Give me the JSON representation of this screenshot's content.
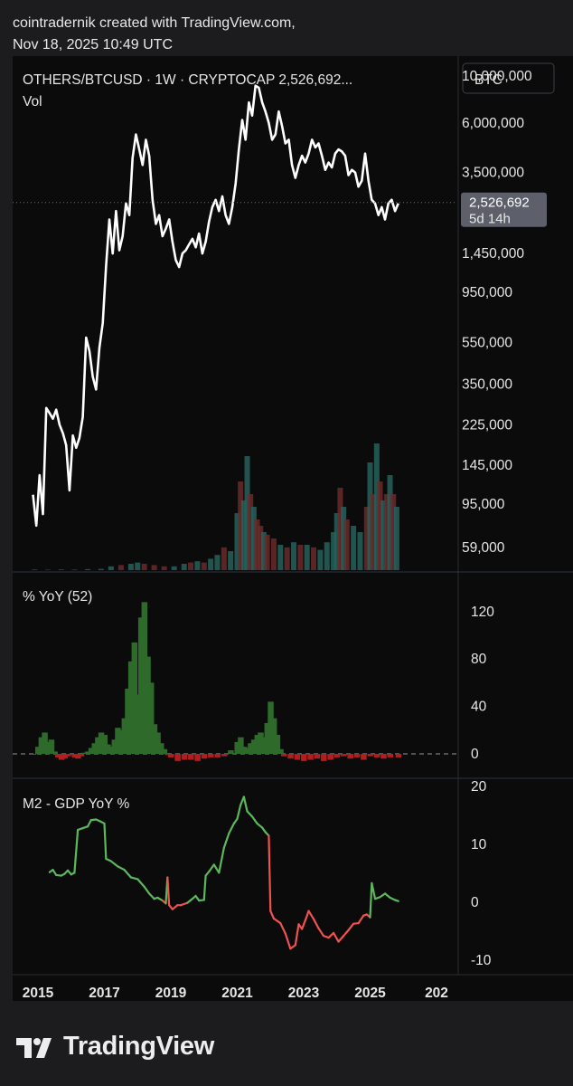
{
  "header": {
    "line1": "cointradernik created with TradingView.com,",
    "line2": "Nov 18, 2025 10:49 UTC"
  },
  "footer": {
    "brand": "TradingView"
  },
  "currency_button": "BTC",
  "colors": {
    "price_line": "#ffffff",
    "positive": "#2e6b2b",
    "negative": "#b21e1e",
    "m2_up": "#5cb85c",
    "m2_down": "#ef5350",
    "badge_bg": "#5d606b"
  },
  "chart_data": [
    {
      "type": "line",
      "title": "OTHERS/BTCUSD · 1W · CRYPTOCAP",
      "last_value_label": "2,526,692...",
      "volume_label": "Vol",
      "price_badge": {
        "value": "2,526,692",
        "countdown": "5d 14h"
      },
      "y_scale": "log",
      "ylim": [
        50000,
        10000000
      ],
      "y_ticks": [
        "10,000,000",
        "6,000,000",
        "3,500,000",
        "2,526,692",
        "1,450,000",
        "950,000",
        "550,000",
        "350,000",
        "225,000",
        "145,000",
        "95,000",
        "59,000"
      ],
      "series": [
        {
          "x": [
            2014.85,
            2014.95,
            2015.05,
            2015.15,
            2015.25,
            2015.35,
            2015.45,
            2015.55,
            2015.65,
            2015.75,
            2015.85,
            2015.95,
            2016.05,
            2016.15,
            2016.25,
            2016.35,
            2016.45,
            2016.55,
            2016.65,
            2016.75,
            2016.85,
            2016.95,
            2017.05,
            2017.15,
            2017.25,
            2017.35,
            2017.45,
            2017.55,
            2017.65,
            2017.75,
            2017.85,
            2017.95,
            2018.05,
            2018.15,
            2018.25,
            2018.35,
            2018.45,
            2018.55,
            2018.65,
            2018.75,
            2018.85,
            2018.95,
            2019.05,
            2019.15,
            2019.25,
            2019.35,
            2019.45,
            2019.55,
            2019.65,
            2019.75,
            2019.85,
            2019.95,
            2020.05,
            2020.15,
            2020.25,
            2020.35,
            2020.45,
            2020.55,
            2020.65,
            2020.75,
            2020.85,
            2020.95,
            2021.05,
            2021.15,
            2021.25,
            2021.35,
            2021.45,
            2021.55,
            2021.65,
            2021.75,
            2021.85,
            2021.95,
            2022.05,
            2022.15,
            2022.25,
            2022.35,
            2022.45,
            2022.55,
            2022.65,
            2022.75,
            2022.85,
            2022.95,
            2023.05,
            2023.15,
            2023.25,
            2023.35,
            2023.45,
            2023.55,
            2023.65,
            2023.75,
            2023.85,
            2023.95,
            2024.05,
            2024.15,
            2024.25,
            2024.35,
            2024.45,
            2024.55,
            2024.65,
            2024.75,
            2024.85,
            2024.95,
            2025.05,
            2025.15,
            2025.25,
            2025.35,
            2025.45,
            2025.55,
            2025.65,
            2025.75,
            2025.85
          ],
          "y": [
            105000,
            75000,
            130000,
            85000,
            270000,
            255000,
            240000,
            265000,
            225000,
            205000,
            180000,
            110000,
            200000,
            175000,
            195000,
            245000,
            580000,
            500000,
            380000,
            330000,
            520000,
            680000,
            1250000,
            2100000,
            1450000,
            2300000,
            1500000,
            1750000,
            2500000,
            2200000,
            4100000,
            5300000,
            4500000,
            3800000,
            5000000,
            4200000,
            2600000,
            2000000,
            2200000,
            1750000,
            1900000,
            2100000,
            1650000,
            1350000,
            1250000,
            1450000,
            1500000,
            1600000,
            1700000,
            1550000,
            1800000,
            1450000,
            1650000,
            2050000,
            2400000,
            2600000,
            2300000,
            2700000,
            2200000,
            2000000,
            2400000,
            3100000,
            4500000,
            6200000,
            5000000,
            7500000,
            6500000,
            9000000,
            8800000,
            7500000,
            6800000,
            6000000,
            5000000,
            5300000,
            6800000,
            5800000,
            4800000,
            5000000,
            3800000,
            3300000,
            3800000,
            4200000,
            3900000,
            4300000,
            5000000,
            4600000,
            4800000,
            4200000,
            3600000,
            3900000,
            3700000,
            4300000,
            4500000,
            4400000,
            4200000,
            3400000,
            3600000,
            3500000,
            3000000,
            3200000,
            4300000,
            3200000,
            2600000,
            2500000,
            2200000,
            2400000,
            2100000,
            2500000,
            2600000,
            2300000,
            2500000
          ],
          "name": ""
        }
      ],
      "volume": {
        "x": [
          2014.9,
          2015.3,
          2015.7,
          2016.1,
          2016.5,
          2016.9,
          2017.2,
          2017.5,
          2017.8,
          2018.0,
          2018.2,
          2018.5,
          2018.8,
          2019.1,
          2019.4,
          2019.6,
          2019.8,
          2020.0,
          2020.2,
          2020.4,
          2020.6,
          2020.8,
          2021.0,
          2021.1,
          2021.2,
          2021.3,
          2021.4,
          2021.5,
          2021.6,
          2021.7,
          2021.8,
          2021.9,
          2022.1,
          2022.3,
          2022.5,
          2022.7,
          2022.9,
          2023.1,
          2023.3,
          2023.5,
          2023.7,
          2023.9,
          2024.0,
          2024.1,
          2024.2,
          2024.3,
          2024.5,
          2024.7,
          2024.9,
          2025.0,
          2025.1,
          2025.2,
          2025.3,
          2025.4,
          2025.5,
          2025.6,
          2025.7,
          2025.8
        ],
        "values": [
          0.005,
          0.005,
          0.005,
          0.006,
          0.008,
          0.01,
          0.03,
          0.04,
          0.05,
          0.06,
          0.05,
          0.04,
          0.03,
          0.03,
          0.05,
          0.06,
          0.07,
          0.06,
          0.09,
          0.12,
          0.18,
          0.15,
          0.45,
          0.7,
          0.55,
          0.9,
          0.6,
          0.5,
          0.4,
          0.35,
          0.3,
          0.28,
          0.25,
          0.2,
          0.18,
          0.22,
          0.2,
          0.2,
          0.18,
          0.16,
          0.22,
          0.3,
          0.45,
          0.65,
          0.5,
          0.4,
          0.35,
          0.3,
          0.5,
          0.85,
          0.6,
          1.0,
          0.7,
          0.55,
          0.6,
          0.75,
          0.6,
          0.5
        ],
        "direction": [
          1,
          0,
          1,
          0,
          1,
          1,
          1,
          0,
          1,
          1,
          0,
          0,
          0,
          1,
          1,
          0,
          1,
          0,
          1,
          1,
          0,
          1,
          1,
          0,
          1,
          1,
          0,
          1,
          0,
          0,
          1,
          0,
          0,
          1,
          0,
          1,
          0,
          1,
          0,
          1,
          1,
          1,
          1,
          0,
          1,
          0,
          1,
          1,
          0,
          1,
          0,
          1,
          0,
          1,
          0,
          1,
          0,
          1
        ]
      },
      "x_ticks": [
        "2015",
        "2017",
        "2019",
        "2021",
        "2023",
        "2025",
        "202"
      ]
    },
    {
      "type": "area",
      "title": "% YoY (52)",
      "ylim": [
        -10,
        140
      ],
      "y_ticks": [
        "120",
        "80",
        "40",
        "0"
      ],
      "x": [
        2014.85,
        2015.0,
        2015.1,
        2015.2,
        2015.3,
        2015.4,
        2015.5,
        2015.6,
        2015.7,
        2015.8,
        2015.9,
        2016.0,
        2016.1,
        2016.2,
        2016.3,
        2016.4,
        2016.5,
        2016.6,
        2016.7,
        2016.8,
        2016.9,
        2017.0,
        2017.1,
        2017.2,
        2017.3,
        2017.4,
        2017.5,
        2017.6,
        2017.7,
        2017.8,
        2017.9,
        2018.0,
        2018.1,
        2018.2,
        2018.3,
        2018.4,
        2018.5,
        2018.6,
        2018.7,
        2018.8,
        2018.9,
        2019.0,
        2019.2,
        2019.4,
        2019.6,
        2019.8,
        2020.0,
        2020.2,
        2020.4,
        2020.6,
        2020.8,
        2021.0,
        2021.1,
        2021.2,
        2021.3,
        2021.4,
        2021.5,
        2021.6,
        2021.7,
        2021.8,
        2021.9,
        2022.0,
        2022.1,
        2022.2,
        2022.3,
        2022.4,
        2022.6,
        2022.8,
        2023.0,
        2023.2,
        2023.4,
        2023.6,
        2023.8,
        2024.0,
        2024.2,
        2024.4,
        2024.6,
        2024.8,
        2025.0,
        2025.2,
        2025.4,
        2025.6,
        2025.85
      ],
      "values": [
        0,
        6,
        14,
        18,
        10,
        12,
        2,
        -3,
        -5,
        -4,
        -2,
        -1,
        -3,
        -4,
        -2,
        1,
        2,
        5,
        9,
        14,
        18,
        16,
        8,
        6,
        12,
        22,
        20,
        30,
        55,
        78,
        94,
        50,
        115,
        128,
        82,
        60,
        25,
        18,
        9,
        4,
        -1,
        -3,
        -6,
        -5,
        -5,
        -6,
        -4,
        -3,
        -3,
        -2,
        3,
        10,
        14,
        6,
        5,
        9,
        12,
        16,
        18,
        14,
        26,
        44,
        30,
        16,
        4,
        -2,
        -4,
        -5,
        -6,
        -5,
        -4,
        -6,
        -5,
        -3,
        -2,
        -4,
        -3,
        -5,
        -2,
        -3,
        -4,
        -3,
        -3
      ]
    },
    {
      "type": "line",
      "title": "M2 - GDP YoY %",
      "ylim": [
        -12,
        21
      ],
      "y_ticks": [
        "20",
        "10",
        "0",
        "-10"
      ],
      "x": [
        2015.35,
        2015.45,
        2015.55,
        2015.7,
        2015.8,
        2015.9,
        2016.0,
        2016.1,
        2016.2,
        2016.35,
        2016.5,
        2016.6,
        2016.75,
        2016.9,
        2017.0,
        2017.05,
        2017.2,
        2017.4,
        2017.6,
        2017.8,
        2018.0,
        2018.2,
        2018.35,
        2018.5,
        2018.6,
        2018.75,
        2018.85,
        2018.9,
        2018.95,
        2019.05,
        2019.2,
        2019.3,
        2019.5,
        2019.65,
        2019.75,
        2019.85,
        2020.0,
        2020.05,
        2020.15,
        2020.3,
        2020.45,
        2020.6,
        2020.75,
        2020.9,
        2021.0,
        2021.1,
        2021.2,
        2021.3,
        2021.45,
        2021.6,
        2021.75,
        2021.85,
        2021.95,
        2022.0,
        2022.1,
        2022.2,
        2022.3,
        2022.45,
        2022.6,
        2022.75,
        2022.85,
        2022.95,
        2023.05,
        2023.15,
        2023.3,
        2023.45,
        2023.6,
        2023.75,
        2023.9,
        2024.05,
        2024.2,
        2024.35,
        2024.5,
        2024.65,
        2024.8,
        2024.9,
        2025.0,
        2025.05,
        2025.15,
        2025.3,
        2025.45,
        2025.6,
        2025.75,
        2025.85
      ],
      "values": [
        5.2,
        5.6,
        4.7,
        4.6,
        4.9,
        5.5,
        4.8,
        5.1,
        12.5,
        12.8,
        13.1,
        14.2,
        14.3,
        13.9,
        13.6,
        7.5,
        7.1,
        6.2,
        5.6,
        4.3,
        4.0,
        2.7,
        1.5,
        0.6,
        0.8,
        0.3,
        -0.2,
        4.3,
        -0.5,
        -1.2,
        -0.5,
        -0.5,
        -0.1,
        0.6,
        1.1,
        0.3,
        0.4,
        4.6,
        5.3,
        6.5,
        5.1,
        9.4,
        11.9,
        13.6,
        14.4,
        16.8,
        18.2,
        15.7,
        14.8,
        13.6,
        12.9,
        12.1,
        11.5,
        -1.5,
        -2.8,
        -3.2,
        -3.6,
        -5.4,
        -8.0,
        -7.4,
        -3.8,
        -4.6,
        -3.1,
        -1.5,
        -2.9,
        -4.5,
        -5.8,
        -6.1,
        -5.3,
        -6.8,
        -5.8,
        -4.8,
        -3.7,
        -3.6,
        -2.3,
        -2.1,
        -2.6,
        3.3,
        0.6,
        0.9,
        1.5,
        0.8,
        0.4,
        0.2
      ]
    }
  ]
}
